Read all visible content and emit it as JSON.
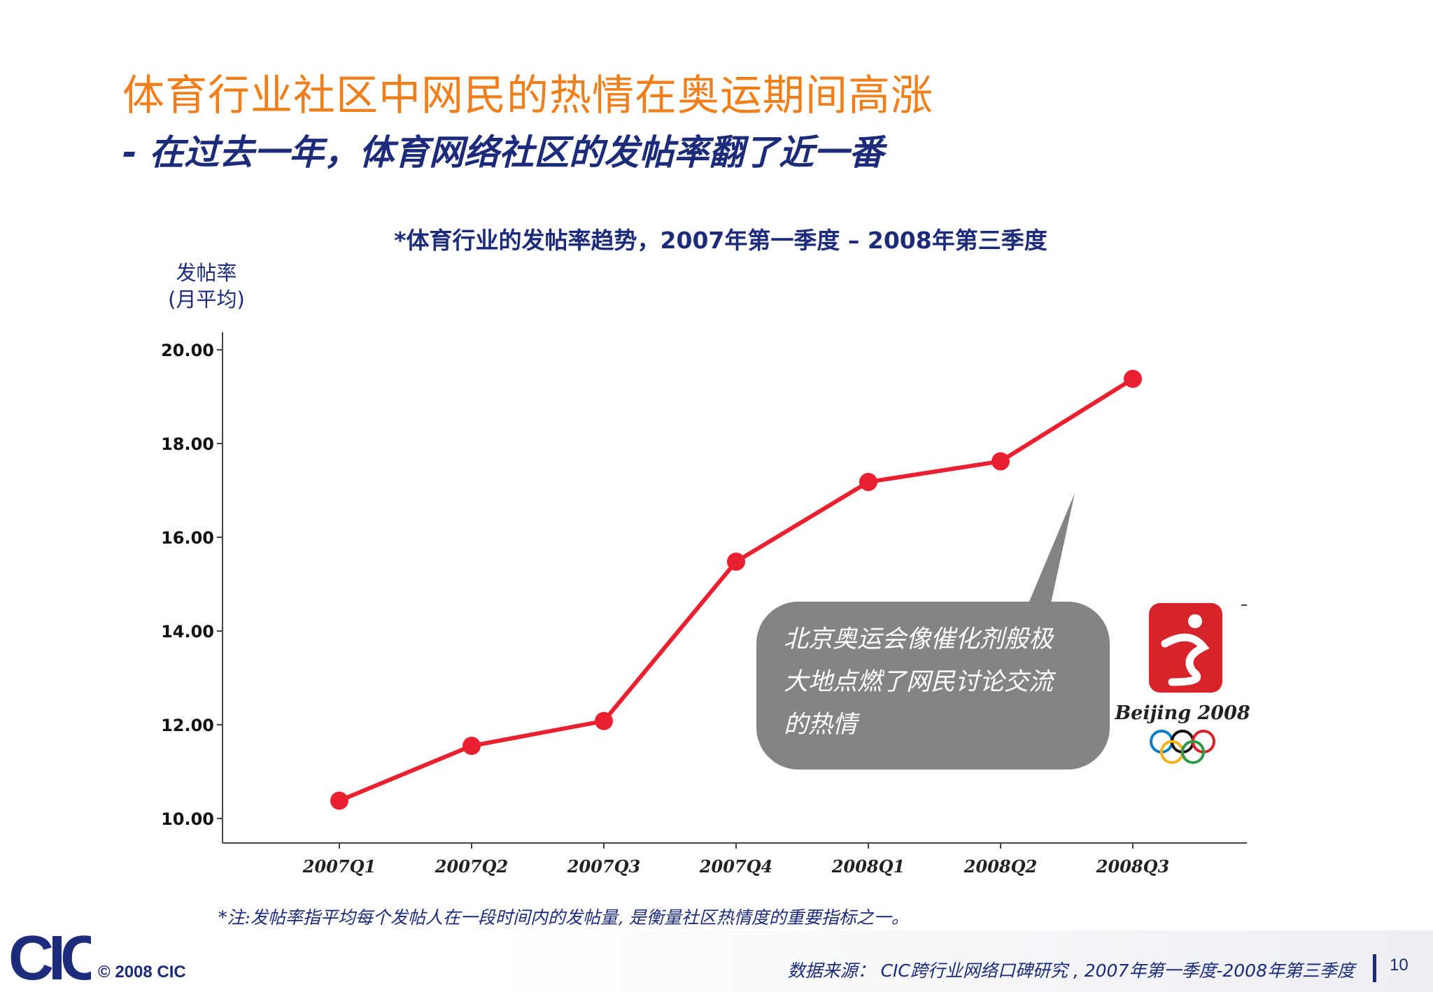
{
  "slide": {
    "title": "体育行业社区中网民的热情在奥运期间高涨",
    "subtitle": "- 在过去一年，体育网络社区的发帖率翻了近一番",
    "footnote": "*注:发帖率指平均每个发帖人在一段时间内的发帖量, 是衡量社区热情度的重要指标之一。",
    "copyright": "© 2008  CIC",
    "source": "数据来源：  CIC跨行业网络口碑研究 , 2007年第一季度-2008年第三季度",
    "page_number": "10",
    "logo_text": "CIC"
  },
  "callout": {
    "lines": [
      "北京奥运会像催化剂般极",
      "大地点燃了网民讨论交流",
      "的热情"
    ]
  },
  "olympic_logo": {
    "text": "Beijing 2008",
    "ring_colors": [
      "#0a7ec2",
      "#111111",
      "#d8232a",
      "#f2b21b",
      "#2a9a46"
    ]
  },
  "colors": {
    "title": "#f07f1b",
    "text": "#1c2b7a",
    "line": "#e8202f",
    "callout": "#848386"
  },
  "chart_data": {
    "type": "line",
    "title": "*体育行业的发帖率趋势，2007年第一季度 – 2008年第三季度",
    "ylabel_lines": [
      "发帖率",
      "(月平均)"
    ],
    "categories": [
      "2007Q1",
      "2007Q2",
      "2007Q3",
      "2007Q4",
      "2008Q1",
      "2008Q2",
      "2008Q3"
    ],
    "values": [
      10.38,
      11.55,
      12.08,
      15.48,
      17.18,
      17.62,
      19.38
    ],
    "yticks": [
      "10.00",
      "12.00",
      "14.00",
      "16.00",
      "18.00",
      "20.00"
    ],
    "ylim": [
      9.5,
      20.5
    ],
    "grid": false,
    "legend": "none"
  }
}
